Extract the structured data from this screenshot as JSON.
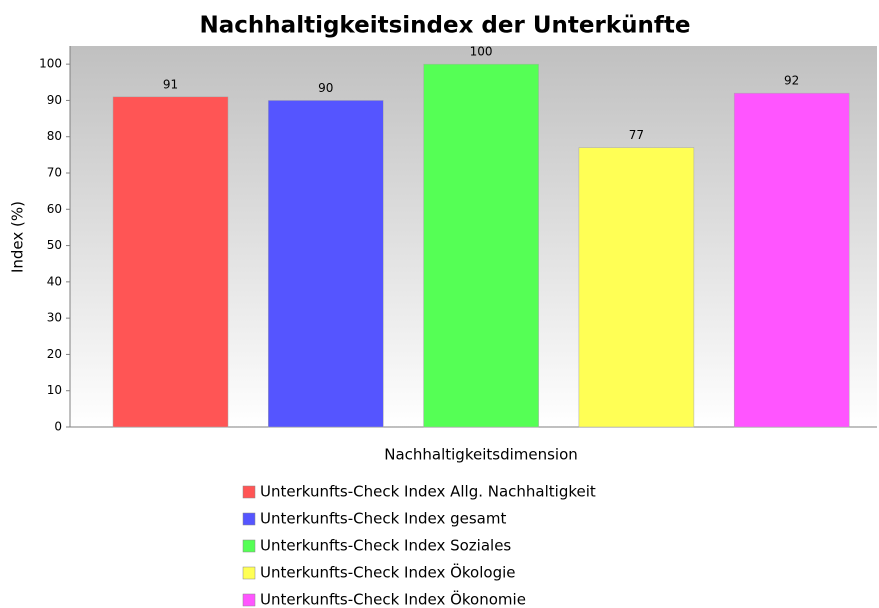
{
  "chart_data": {
    "type": "bar",
    "title": "Nachhaltigkeitsindex der Unterkünfte",
    "x_label": "Nachhaltigkeitsdimension",
    "y_label": "Index (%)",
    "categories": [
      null
    ],
    "series": [
      {
        "name": "Unterkunfts-Check Index Allg. Nachhaltigkeit",
        "color": "#ff5555",
        "values": [
          91
        ]
      },
      {
        "name": "Unterkunfts-Check Index gesamt",
        "color": "#5555ff",
        "values": [
          90
        ]
      },
      {
        "name": "Unterkunfts-Check Index Soziales",
        "color": "#55ff55",
        "values": [
          100
        ]
      },
      {
        "name": "Unterkunfts-Check Index Ökologie",
        "color": "#ffff55",
        "values": [
          77
        ]
      },
      {
        "name": "Unterkunfts-Check Index Ökonomie",
        "color": "#ff55ff",
        "values": [
          92
        ]
      }
    ],
    "ylim": [
      0,
      105
    ],
    "yticks": [
      0,
      10,
      20,
      30,
      40,
      50,
      60,
      70,
      80,
      90,
      100
    ],
    "legend": "bottom"
  }
}
